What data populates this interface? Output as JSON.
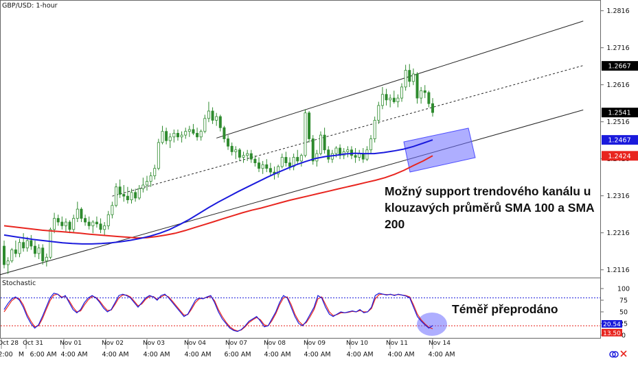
{
  "chart_data": {
    "type": "candlestick",
    "panels": [
      {
        "id": "price",
        "title": "GBP/USD: 1-hour",
        "yticks": [
          1.2116,
          1.2216,
          1.2316,
          1.2416,
          1.2516,
          1.2616,
          1.2716,
          1.2816
        ],
        "ylim": [
          1.2095,
          1.2845
        ],
        "price_labels": [
          {
            "value": 1.2667,
            "color": "#000000"
          },
          {
            "value": 1.2541,
            "color": "#000000"
          },
          {
            "value": 1.2467,
            "color": "#1a1adc"
          },
          {
            "value": 1.2424,
            "color": "#e8251f"
          }
        ],
        "candles": [
          [
            1.218,
            1.2195,
            1.212,
            1.213
          ],
          [
            1.213,
            1.215,
            1.2105,
            1.214
          ],
          [
            1.214,
            1.2175,
            1.2135,
            1.217
          ],
          [
            1.217,
            1.2195,
            1.215,
            1.216
          ],
          [
            1.216,
            1.22,
            1.215,
            1.219
          ],
          [
            1.219,
            1.2215,
            1.2165,
            1.2175
          ],
          [
            1.2175,
            1.2205,
            1.2165,
            1.2195
          ],
          [
            1.2195,
            1.221,
            1.217,
            1.218
          ],
          [
            1.218,
            1.2195,
            1.215,
            1.216
          ],
          [
            1.216,
            1.2185,
            1.2145,
            1.2175
          ],
          [
            1.2175,
            1.2185,
            1.213,
            1.214
          ],
          [
            1.214,
            1.216,
            1.2125,
            1.215
          ],
          [
            1.215,
            1.223,
            1.2145,
            1.2225
          ],
          [
            1.2225,
            1.227,
            1.2215,
            1.2255
          ],
          [
            1.2255,
            1.2265,
            1.2235,
            1.2245
          ],
          [
            1.2245,
            1.226,
            1.2225,
            1.2235
          ],
          [
            1.2235,
            1.2255,
            1.222,
            1.2245
          ],
          [
            1.2245,
            1.225,
            1.2215,
            1.2225
          ],
          [
            1.2225,
            1.2265,
            1.2215,
            1.2255
          ],
          [
            1.2255,
            1.23,
            1.2245,
            1.228
          ],
          [
            1.228,
            1.2285,
            1.2245,
            1.2255
          ],
          [
            1.2255,
            1.2265,
            1.2235,
            1.2245
          ],
          [
            1.2245,
            1.226,
            1.2225,
            1.2235
          ],
          [
            1.2235,
            1.225,
            1.2215,
            1.2245
          ],
          [
            1.2245,
            1.226,
            1.223,
            1.224
          ],
          [
            1.224,
            1.2255,
            1.2215,
            1.2225
          ],
          [
            1.2225,
            1.2245,
            1.221,
            1.2235
          ],
          [
            1.2235,
            1.2275,
            1.2225,
            1.2265
          ],
          [
            1.2265,
            1.23,
            1.2255,
            1.229
          ],
          [
            1.229,
            1.235,
            1.2285,
            1.234
          ],
          [
            1.234,
            1.236,
            1.231,
            1.232
          ],
          [
            1.232,
            1.2345,
            1.23,
            1.2315
          ],
          [
            1.2315,
            1.234,
            1.2295,
            1.2305
          ],
          [
            1.2305,
            1.2335,
            1.2295,
            1.2325
          ],
          [
            1.2325,
            1.2335,
            1.23,
            1.231
          ],
          [
            1.231,
            1.2345,
            1.2305,
            1.2335
          ],
          [
            1.2335,
            1.2365,
            1.2325,
            1.2345
          ],
          [
            1.2345,
            1.237,
            1.233,
            1.2355
          ],
          [
            1.2355,
            1.238,
            1.234,
            1.237
          ],
          [
            1.237,
            1.24,
            1.236,
            1.239
          ],
          [
            1.239,
            1.247,
            1.2385,
            1.246
          ],
          [
            1.246,
            1.2505,
            1.2455,
            1.249
          ],
          [
            1.249,
            1.25,
            1.2455,
            1.2465
          ],
          [
            1.2465,
            1.2485,
            1.2445,
            1.2475
          ],
          [
            1.2475,
            1.2495,
            1.246,
            1.2485
          ],
          [
            1.2485,
            1.2495,
            1.2465,
            1.2475
          ],
          [
            1.2475,
            1.249,
            1.246,
            1.248
          ],
          [
            1.248,
            1.25,
            1.247,
            1.249
          ],
          [
            1.249,
            1.2505,
            1.2475,
            1.2495
          ],
          [
            1.2495,
            1.251,
            1.248,
            1.2485
          ],
          [
            1.2485,
            1.25,
            1.2465,
            1.2475
          ],
          [
            1.2475,
            1.2495,
            1.2465,
            1.249
          ],
          [
            1.249,
            1.2535,
            1.2485,
            1.2525
          ],
          [
            1.2525,
            1.257,
            1.2515,
            1.2545
          ],
          [
            1.2545,
            1.2555,
            1.251,
            1.252
          ],
          [
            1.252,
            1.254,
            1.2505,
            1.253
          ],
          [
            1.253,
            1.2535,
            1.249,
            1.25
          ],
          [
            1.25,
            1.2505,
            1.246,
            1.247
          ],
          [
            1.247,
            1.248,
            1.244,
            1.245
          ],
          [
            1.245,
            1.246,
            1.2425,
            1.2435
          ],
          [
            1.2435,
            1.245,
            1.2415,
            1.244
          ],
          [
            1.244,
            1.2445,
            1.241,
            1.242
          ],
          [
            1.242,
            1.2435,
            1.2405,
            1.2425
          ],
          [
            1.2425,
            1.244,
            1.241,
            1.243
          ],
          [
            1.243,
            1.244,
            1.2405,
            1.2415
          ],
          [
            1.2415,
            1.2425,
            1.2395,
            1.2405
          ],
          [
            1.2405,
            1.242,
            1.238,
            1.239
          ],
          [
            1.239,
            1.241,
            1.2375,
            1.24
          ],
          [
            1.24,
            1.2415,
            1.238,
            1.239
          ],
          [
            1.239,
            1.2405,
            1.237,
            1.238
          ],
          [
            1.238,
            1.2395,
            1.236,
            1.2375
          ],
          [
            1.2375,
            1.24,
            1.2365,
            1.2395
          ],
          [
            1.2395,
            1.243,
            1.239,
            1.242
          ],
          [
            1.242,
            1.2435,
            1.2395,
            1.2405
          ],
          [
            1.2405,
            1.242,
            1.2385,
            1.2395
          ],
          [
            1.2395,
            1.243,
            1.2385,
            1.242
          ],
          [
            1.242,
            1.244,
            1.24,
            1.241
          ],
          [
            1.241,
            1.243,
            1.2395,
            1.2425
          ],
          [
            1.2425,
            1.255,
            1.242,
            1.254
          ],
          [
            1.254,
            1.2545,
            1.246,
            1.247
          ],
          [
            1.247,
            1.248,
            1.24,
            1.241
          ],
          [
            1.241,
            1.244,
            1.2395,
            1.243
          ],
          [
            1.243,
            1.249,
            1.2425,
            1.248
          ],
          [
            1.248,
            1.25,
            1.243,
            1.244
          ],
          [
            1.244,
            1.245,
            1.2405,
            1.2415
          ],
          [
            1.2415,
            1.244,
            1.2405,
            1.243
          ],
          [
            1.243,
            1.245,
            1.242,
            1.2445
          ],
          [
            1.2445,
            1.2455,
            1.2415,
            1.2425
          ],
          [
            1.2425,
            1.2445,
            1.2415,
            1.2435
          ],
          [
            1.2435,
            1.245,
            1.242,
            1.244
          ],
          [
            1.244,
            1.245,
            1.2415,
            1.2425
          ],
          [
            1.2425,
            1.2445,
            1.2405,
            1.242
          ],
          [
            1.242,
            1.244,
            1.241,
            1.243
          ],
          [
            1.243,
            1.2445,
            1.2405,
            1.2415
          ],
          [
            1.2415,
            1.245,
            1.241,
            1.244
          ],
          [
            1.244,
            1.248,
            1.243,
            1.247
          ],
          [
            1.247,
            1.253,
            1.246,
            1.252
          ],
          [
            1.252,
            1.257,
            1.251,
            1.256
          ],
          [
            1.256,
            1.261,
            1.255,
            1.259
          ],
          [
            1.259,
            1.2605,
            1.256,
            1.2575
          ],
          [
            1.2575,
            1.259,
            1.2555,
            1.258
          ],
          [
            1.258,
            1.26,
            1.2565,
            1.257
          ],
          [
            1.257,
            1.259,
            1.2555,
            1.258
          ],
          [
            1.258,
            1.262,
            1.257,
            1.261
          ],
          [
            1.261,
            1.267,
            1.26,
            1.2655
          ],
          [
            1.2655,
            1.2672,
            1.261,
            1.2625
          ],
          [
            1.2625,
            1.266,
            1.2615,
            1.2645
          ],
          [
            1.2645,
            1.265,
            1.2565,
            1.258
          ],
          [
            1.258,
            1.261,
            1.2565,
            1.26
          ],
          [
            1.26,
            1.2615,
            1.258,
            1.2595
          ],
          [
            1.2595,
            1.26,
            1.2555,
            1.2565
          ],
          [
            1.2565,
            1.258,
            1.253,
            1.2541
          ]
        ],
        "sma100": [
          1.221,
          1.2206,
          1.2202,
          1.2198,
          1.2195,
          1.2192,
          1.2189,
          1.2187,
          1.2186,
          1.2186,
          1.2187,
          1.2189,
          1.2192,
          1.2196,
          1.2201,
          1.2207,
          1.2215,
          1.2225,
          1.2238,
          1.2252,
          1.2268,
          1.2284,
          1.2299,
          1.2313,
          1.2327,
          1.234,
          1.2353,
          1.2366,
          1.2378,
          1.2389,
          1.24,
          1.2409,
          1.2417,
          1.2422,
          1.2425,
          1.2429,
          1.2431,
          1.243,
          1.243,
          1.2433,
          1.2437,
          1.2442,
          1.2449,
          1.2458,
          1.2467
        ],
        "sma200": [
          1.2235,
          1.2232,
          1.2229,
          1.2226,
          1.2223,
          1.2221,
          1.2219,
          1.2217,
          1.2215,
          1.2212,
          1.221,
          1.2208,
          1.2206,
          1.2204,
          1.2202,
          1.2203,
          1.2206,
          1.221,
          1.2215,
          1.2222,
          1.223,
          1.2238,
          1.2246,
          1.2254,
          1.2262,
          1.227,
          1.2277,
          1.2283,
          1.229,
          1.2297,
          1.2304,
          1.231,
          1.2316,
          1.2322,
          1.2328,
          1.2334,
          1.234,
          1.2346,
          1.2352,
          1.2358,
          1.2365,
          1.2374,
          1.2385,
          1.2398,
          1.241,
          1.2424
        ]
      },
      {
        "id": "stochastic",
        "title": "Stochastic",
        "yticks": [
          0,
          25,
          50,
          75,
          100
        ],
        "ylim": [
          0,
          100
        ],
        "levels": [
          20,
          80
        ],
        "value_labels": [
          {
            "value": 20.54,
            "color": "#1a1adc"
          },
          {
            "value": 13.5,
            "color": "#e8251f"
          }
        ],
        "k": [
          55,
          68,
          78,
          82,
          75,
          60,
          40,
          25,
          15,
          22,
          40,
          60,
          80,
          90,
          88,
          80,
          85,
          70,
          55,
          48,
          55,
          70,
          80,
          85,
          80,
          70,
          58,
          50,
          55,
          70,
          85,
          88,
          85,
          80,
          70,
          60,
          70,
          80,
          85,
          82,
          75,
          85,
          88,
          80,
          70,
          60,
          50,
          40,
          45,
          60,
          75,
          80,
          78,
          82,
          85,
          70,
          50,
          35,
          25,
          15,
          10,
          8,
          12,
          20,
          30,
          35,
          40,
          30,
          18,
          20,
          35,
          50,
          70,
          85,
          80,
          60,
          40,
          25,
          20,
          30,
          45,
          60,
          85,
          80,
          60,
          45,
          40,
          45,
          50,
          48,
          50,
          52,
          50,
          55,
          48,
          50,
          60,
          85,
          90,
          88,
          86,
          88,
          85,
          88,
          86,
          84,
          80,
          60,
          40,
          30,
          22,
          15,
          20.54
        ],
        "d": [
          50,
          62,
          74,
          80,
          78,
          65,
          45,
          30,
          18,
          20,
          35,
          55,
          74,
          86,
          88,
          82,
          83,
          74,
          60,
          50,
          52,
          65,
          76,
          83,
          81,
          73,
          62,
          53,
          54,
          66,
          80,
          86,
          86,
          82,
          73,
          63,
          67,
          77,
          83,
          83,
          77,
          82,
          86,
          82,
          73,
          63,
          53,
          43,
          44,
          56,
          70,
          78,
          79,
          81,
          83,
          74,
          55,
          40,
          28,
          18,
          12,
          9,
          11,
          18,
          27,
          33,
          38,
          33,
          22,
          20,
          31,
          46,
          65,
          80,
          82,
          66,
          45,
          30,
          22,
          27,
          40,
          55,
          78,
          82,
          66,
          50,
          42,
          44,
          48,
          48,
          49,
          51,
          50,
          53,
          50,
          50,
          57,
          78,
          87,
          88,
          87,
          87,
          86,
          87,
          86,
          85,
          82,
          65,
          45,
          33,
          24,
          17,
          13.5
        ]
      }
    ],
    "x_labels": [
      "Oct 28",
      "Oct 31",
      "Nov 01",
      "Nov 02",
      "Nov 03",
      "Nov 04",
      "Nov 07",
      "Nov 08",
      "Nov 09",
      "Nov 10",
      "Nov 11",
      "Nov 14"
    ],
    "time_labels": [
      "2:00",
      "M",
      "6:00 AM",
      "4:00 AM",
      "4:00 AM",
      "4:00 AM",
      "4:00 AM",
      "6:00 AM",
      "4:00 AM",
      "4:00 AM",
      "4:00 AM",
      "4:00 AM",
      "4:00 AM"
    ],
    "annotations": {
      "main": "Možný support trendového kanálu u klouzavých průměrů SMA 100 a SMA 200",
      "stochastic": "Téměř přeprodáno"
    },
    "colors": {
      "sma100": "#1a1adc",
      "sma200": "#e8251f",
      "k": "#1a1adc",
      "d": "#e8251f",
      "up": "#2e8b2e",
      "down": "#2e8b2e",
      "highlight": "#6b6bff"
    }
  }
}
